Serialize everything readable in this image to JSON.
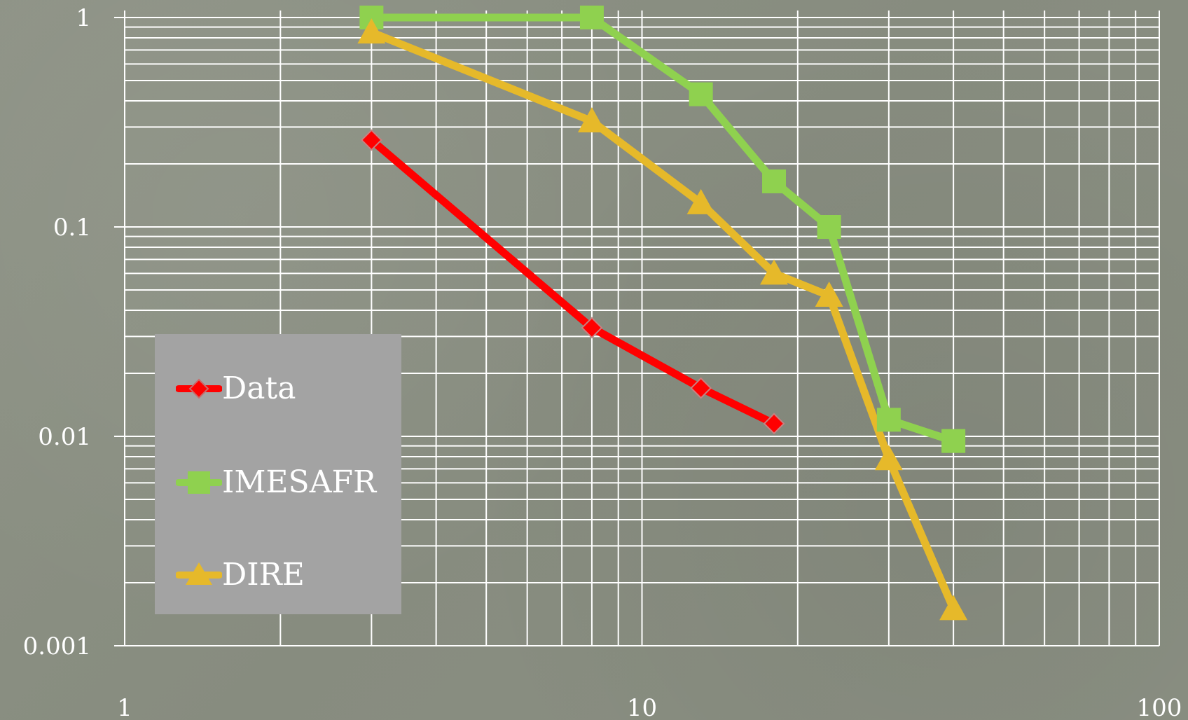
{
  "chart_data": {
    "type": "line",
    "xscale": "log",
    "yscale": "log",
    "xlim": [
      1,
      100
    ],
    "ylim": [
      0.001,
      1
    ],
    "grid": true,
    "legend_position": "bottom-left",
    "x_tick_labels": [
      "1",
      "10",
      "100"
    ],
    "y_tick_labels": [
      "1",
      "0.1",
      "0.01",
      "0.001"
    ],
    "series": [
      {
        "name": "Data",
        "color": "#ff0000",
        "marker": "diamond",
        "x": [
          3,
          8,
          13,
          18
        ],
        "y": [
          0.26,
          0.033,
          0.017,
          0.0115
        ]
      },
      {
        "name": "IMESAFR",
        "color": "#8fd14f",
        "marker": "square",
        "x": [
          3,
          8,
          13,
          18,
          23,
          30,
          40
        ],
        "y": [
          1,
          1,
          0.43,
          0.165,
          0.1,
          0.012,
          0.0095
        ]
      },
      {
        "name": "DIRE",
        "color": "#e6b92a",
        "marker": "triangle",
        "x": [
          3,
          8,
          13,
          18,
          23,
          30,
          40
        ],
        "y": [
          0.85,
          0.32,
          0.13,
          0.06,
          0.047,
          0.0078,
          0.0015
        ]
      }
    ]
  }
}
